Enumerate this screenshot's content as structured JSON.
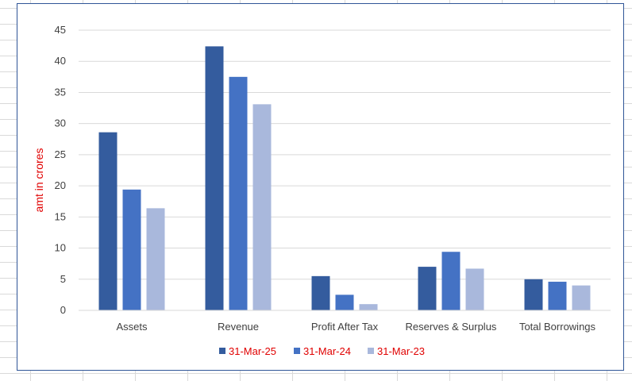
{
  "chart_data": {
    "type": "bar",
    "categories": [
      "Assets",
      "Revenue",
      "Profit After Tax",
      "Reserves & Surplus",
      "Total Borrowings"
    ],
    "series": [
      {
        "name": "31-Mar-25",
        "color": "#345c9e",
        "values": [
          28.6,
          42.4,
          5.5,
          7.0,
          5.0
        ]
      },
      {
        "name": "31-Mar-24",
        "color": "#4472c4",
        "values": [
          19.4,
          37.5,
          2.5,
          9.4,
          4.6
        ]
      },
      {
        "name": "31-Mar-23",
        "color": "#a9b8dc",
        "values": [
          16.4,
          33.1,
          1.0,
          6.7,
          4.0
        ]
      }
    ],
    "ylabel": "amt in crores",
    "ylim": [
      0,
      45
    ],
    "yticks": [
      0,
      5,
      10,
      15,
      20,
      25,
      30,
      35,
      40,
      45
    ],
    "grid": true,
    "legend_position": "bottom"
  }
}
